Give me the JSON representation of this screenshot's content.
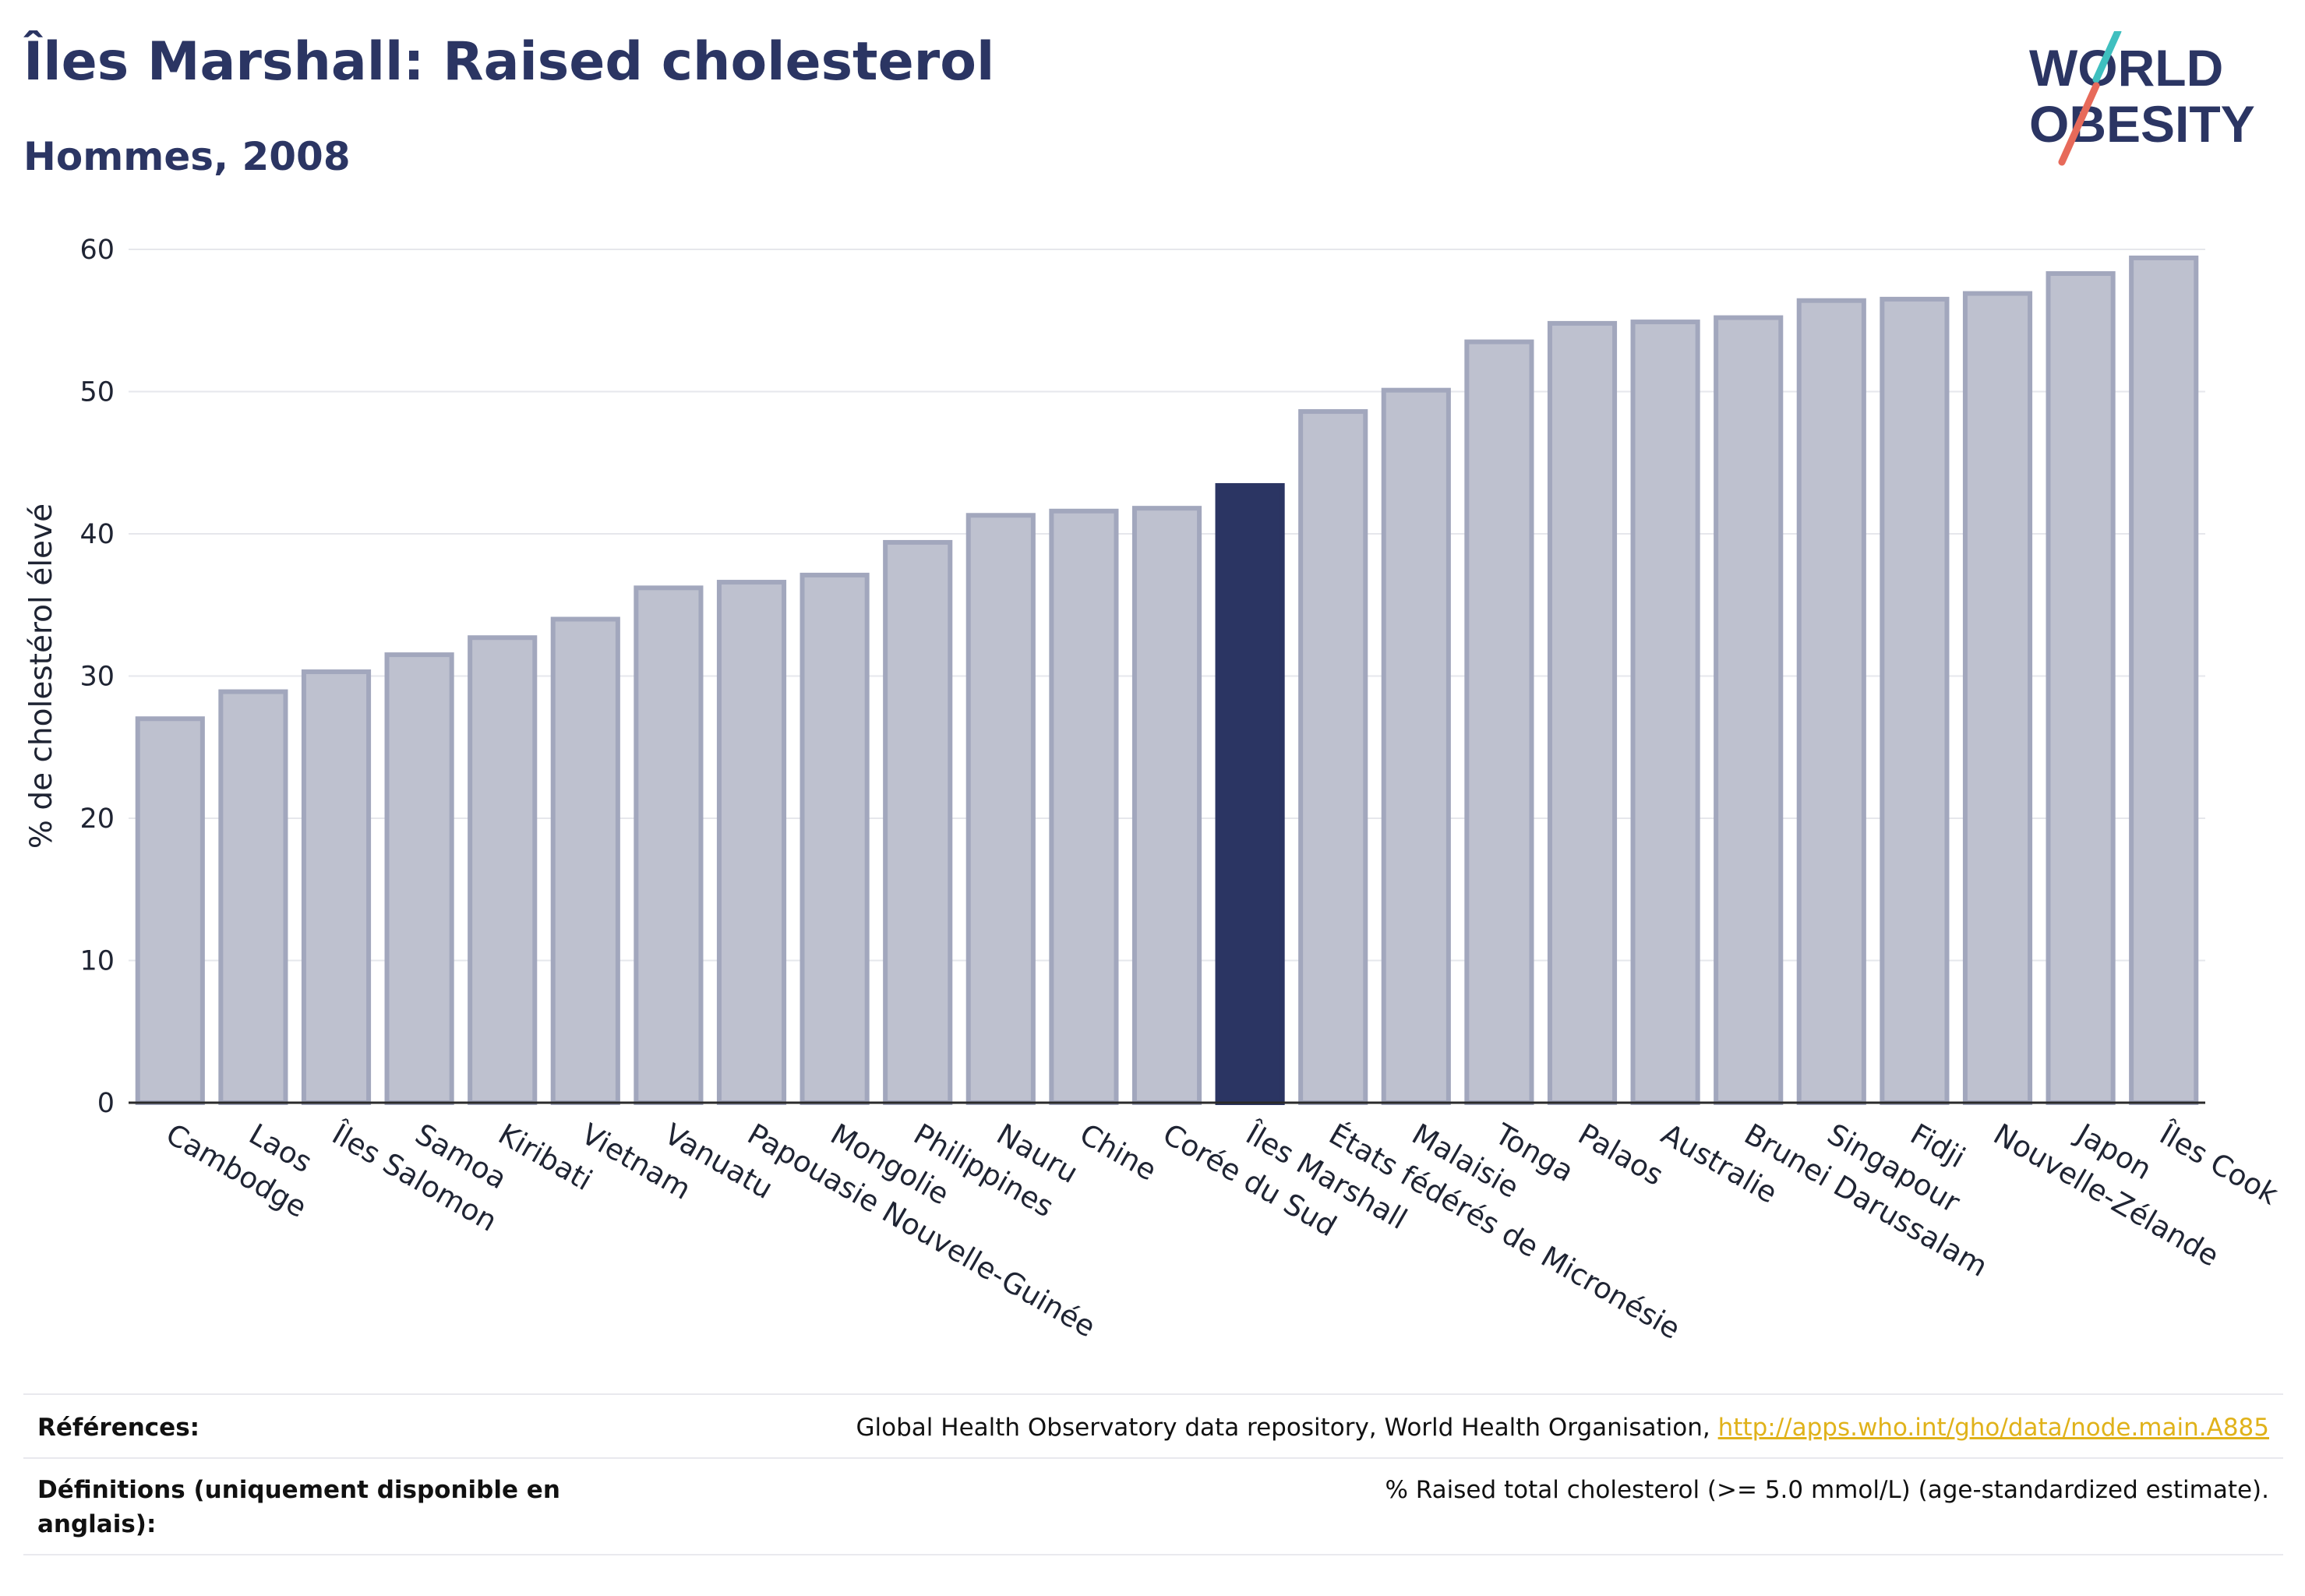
{
  "header": {
    "title": "Îles Marshall: Raised cholesterol",
    "subtitle": "Hommes, 2008"
  },
  "logo": {
    "line1": "WORLD",
    "line2": "OBESITY",
    "colors": {
      "text": "#2b3563",
      "slash_teal": "#3fbfbf",
      "slash_red": "#e76a5a"
    }
  },
  "chart_data": {
    "type": "bar",
    "ylabel": "% de cholestérol élevé",
    "xlabel": "",
    "ylim": [
      0,
      60
    ],
    "yticks": [
      0,
      10,
      20,
      30,
      40,
      50,
      60
    ],
    "grid": true,
    "highlight": "Îles Marshall",
    "colors": {
      "bar": "#bec1cf",
      "bar_stroke": "#a2a7bd",
      "highlight": "#2b3563"
    },
    "categories": [
      "Cambodge",
      "Laos",
      "Îles Salomon",
      "Samoa",
      "Kiribati",
      "Vietnam",
      "Vanuatu",
      "Papouasie Nouvelle-Guinée",
      "Mongolie",
      "Philippines",
      "Nauru",
      "Chine",
      "Corée du Sud",
      "Îles Marshall",
      "États fédérés de Micronésie",
      "Malaisie",
      "Tonga",
      "Palaos",
      "Australie",
      "Brunei Darussalam",
      "Singapour",
      "Fidji",
      "Nouvelle-Zélande",
      "Japon",
      "Îles Cook"
    ],
    "values": [
      27.0,
      28.9,
      30.3,
      31.5,
      32.7,
      34.0,
      36.2,
      36.6,
      37.1,
      39.4,
      41.3,
      41.6,
      41.8,
      43.4,
      48.6,
      50.1,
      53.5,
      54.8,
      54.9,
      55.2,
      56.4,
      56.5,
      56.9,
      58.3,
      59.4
    ]
  },
  "footer": {
    "references_label": "Références:",
    "references_text": "Global Health Observatory data repository, World Health Organisation, ",
    "references_link": "http://apps.who.int/gho/data/node.main.A885",
    "definitions_label": "Définitions (uniquement disponible en anglais):",
    "definitions_text": "% Raised total cholesterol (>= 5.0 mmol/L) (age-standardized estimate)."
  }
}
